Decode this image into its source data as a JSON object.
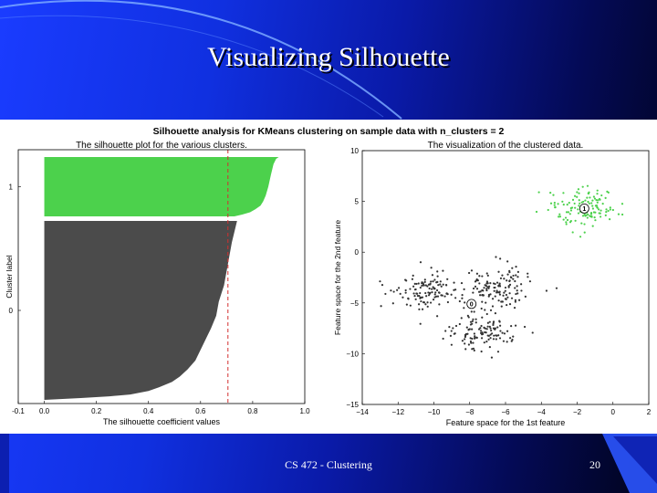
{
  "slide": {
    "title": "Visualizing Silhouette",
    "footer": "CS 472 - Clustering",
    "page_number": "20",
    "colors": {
      "accent": "#1a3cff",
      "dark": "#01031a"
    }
  },
  "chart_data": [
    {
      "type": "area",
      "suptitle": "Silhouette analysis for KMeans clustering on sample data with n_clusters = 2",
      "title": "The silhouette plot for the various clusters.",
      "xlabel": "The silhouette coefficient values",
      "ylabel": "Cluster label",
      "xlim": [
        -0.1,
        1.0
      ],
      "xticks": [
        "-0.1",
        "0.0",
        "0.2",
        "0.4",
        "0.6",
        "0.8",
        "1.0"
      ],
      "xtick_values": [
        -0.1,
        0.0,
        0.2,
        0.4,
        0.6,
        0.8,
        1.0
      ],
      "average_silhouette": 0.705,
      "grid": false,
      "clusters": [
        {
          "label": "1",
          "color": "#4cd14c",
          "n_samples": 125,
          "profile": [
            [
              0,
              0.9
            ],
            [
              0.03,
              0.89
            ],
            [
              0.12,
              0.88
            ],
            [
              0.3,
              0.87
            ],
            [
              0.5,
              0.86
            ],
            [
              0.65,
              0.85
            ],
            [
              0.75,
              0.84
            ],
            [
              0.82,
              0.83
            ],
            [
              0.88,
              0.81
            ],
            [
              0.93,
              0.79
            ],
            [
              0.97,
              0.76
            ],
            [
              1,
              0.73
            ]
          ]
        },
        {
          "label": "0",
          "color": "#4b4b4b",
          "n_samples": 375,
          "profile": [
            [
              0,
              0.74
            ],
            [
              0.06,
              0.73
            ],
            [
              0.12,
              0.72
            ],
            [
              0.2,
              0.71
            ],
            [
              0.28,
              0.7
            ],
            [
              0.36,
              0.69
            ],
            [
              0.45,
              0.67
            ],
            [
              0.53,
              0.66
            ],
            [
              0.6,
              0.64
            ],
            [
              0.66,
              0.62
            ],
            [
              0.72,
              0.6
            ],
            [
              0.78,
              0.58
            ],
            [
              0.83,
              0.55
            ],
            [
              0.87,
              0.52
            ],
            [
              0.9,
              0.49
            ],
            [
              0.93,
              0.44
            ],
            [
              0.95,
              0.4
            ],
            [
              0.97,
              0.33
            ],
            [
              0.98,
              0.25
            ],
            [
              0.99,
              0.14
            ],
            [
              1,
              0.0
            ]
          ]
        }
      ]
    },
    {
      "type": "scatter",
      "title": "The visualization of the clustered data.",
      "xlabel": "Feature space for the 1st feature",
      "ylabel": "Feature space for the 2nd feature",
      "xlim": [
        -14,
        2
      ],
      "ylim": [
        -15,
        10
      ],
      "xticks": [
        "−14",
        "−12",
        "−10",
        "−8",
        "−6",
        "−4",
        "−2",
        "0",
        "2"
      ],
      "xtick_values": [
        -14,
        -12,
        -10,
        -8,
        -6,
        -4,
        -2,
        0,
        2
      ],
      "yticks": [
        "10",
        "5",
        "0",
        "−5",
        "−10",
        "−15"
      ],
      "ytick_values": [
        10,
        5,
        0,
        -5,
        -10,
        -15
      ],
      "grid": false,
      "blobs": [
        {
          "cluster": "0",
          "center": [
            -10.3,
            -3.8
          ],
          "spread": 0.95,
          "n": 125,
          "color": "#333333"
        },
        {
          "cluster": "0",
          "center": [
            -6.2,
            -3.4
          ],
          "spread": 0.95,
          "n": 125,
          "color": "#333333"
        },
        {
          "cluster": "0",
          "center": [
            -7.2,
            -7.9
          ],
          "spread": 0.95,
          "n": 125,
          "color": "#333333"
        },
        {
          "cluster": "1",
          "center": [
            -1.6,
            4.3
          ],
          "spread": 0.95,
          "n": 125,
          "color": "#4cd14c"
        }
      ],
      "centers": [
        {
          "label": "0",
          "x": -7.9,
          "y": -5.1
        },
        {
          "label": "1",
          "x": -1.6,
          "y": 4.3
        }
      ]
    }
  ]
}
